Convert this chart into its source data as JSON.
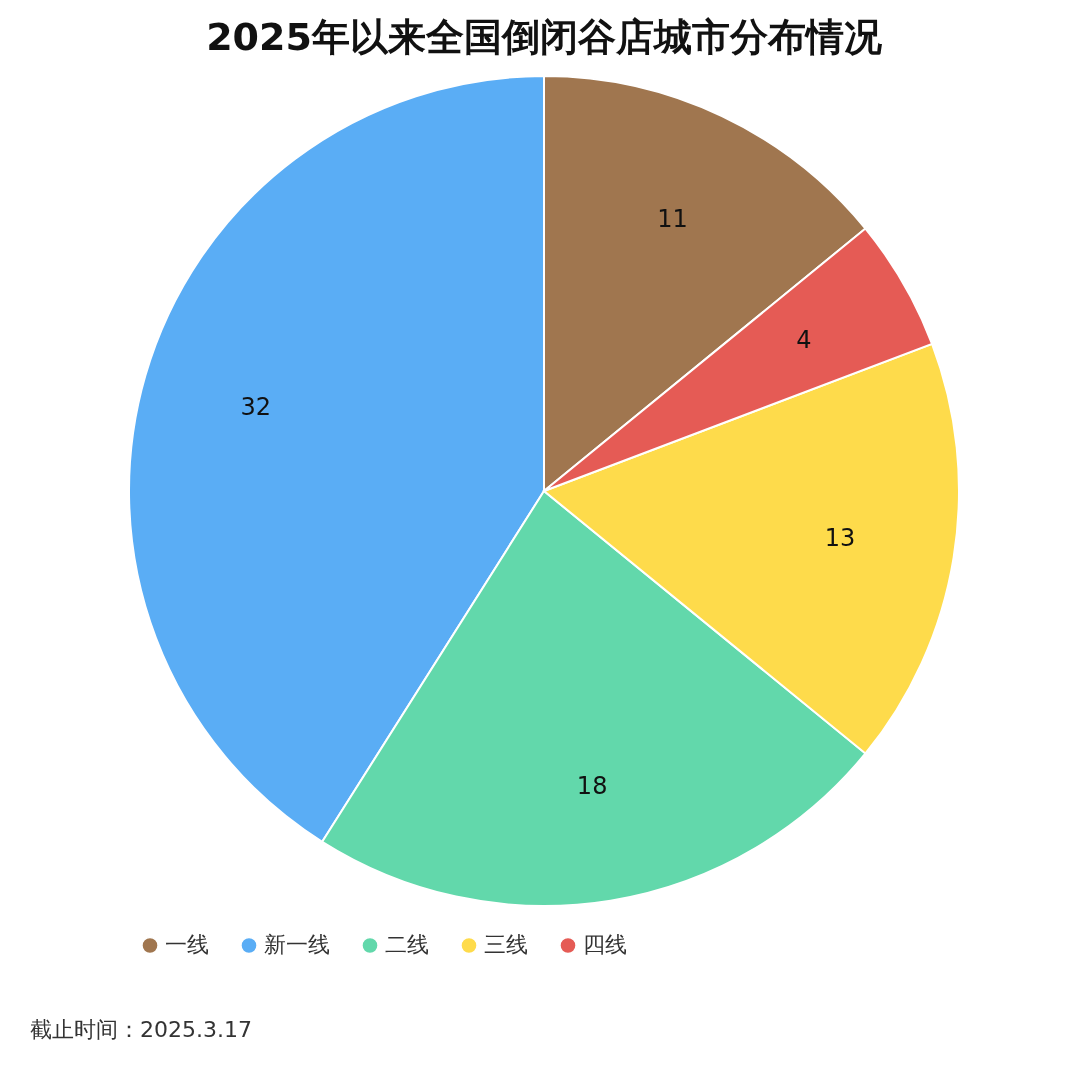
{
  "chart_data": {
    "type": "pie",
    "title": "2025年以来全国倒闭谷店城市分布情况",
    "categories": [
      "一线",
      "新一线",
      "二线",
      "三线",
      "四线"
    ],
    "values": [
      11,
      32,
      18,
      13,
      4
    ],
    "colors": [
      "#a0764f",
      "#5aadf5",
      "#62d8ab",
      "#fedb4b",
      "#e55b55"
    ],
    "data_labels": true,
    "legend": "bottom",
    "annotations": [
      "截止时间：2025.3.17"
    ]
  }
}
